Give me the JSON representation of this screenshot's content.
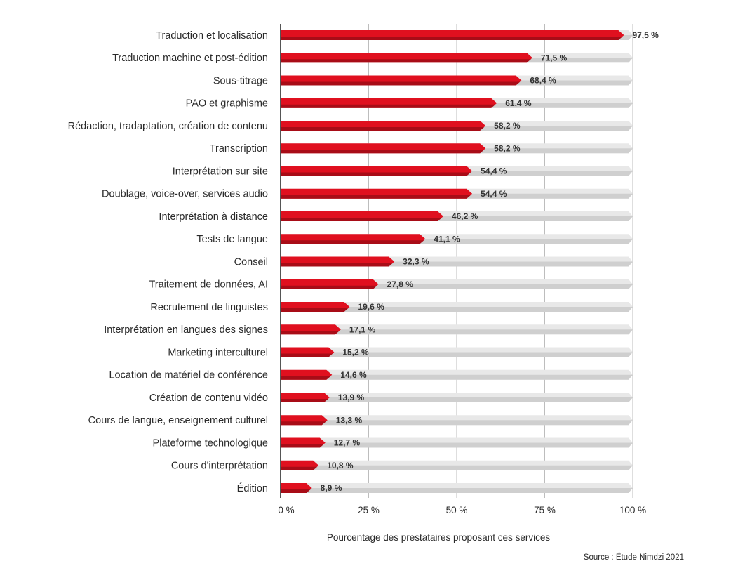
{
  "chart_data": {
    "type": "bar",
    "orientation": "horizontal",
    "categories": [
      "Traduction et localisation",
      "Traduction machine et post-édition",
      "Sous-titrage",
      "PAO et graphisme",
      "Rédaction, tradaptation, création de contenu",
      "Transcription",
      "Interprétation sur site",
      "Doublage, voice-over, services audio",
      "Interprétation à distance",
      "Tests de langue",
      "Conseil",
      "Traitement de données, AI",
      "Recrutement de linguistes",
      "Interprétation en langues des signes",
      "Marketing interculturel",
      "Location de matériel de conférence",
      "Création de contenu vidéo",
      "Cours de langue, enseignement culturel",
      "Plateforme technologique",
      "Cours d'interprétation",
      "Édition"
    ],
    "values": [
      97.5,
      71.5,
      68.4,
      61.4,
      58.2,
      58.2,
      54.4,
      54.4,
      46.2,
      41.1,
      32.3,
      27.8,
      19.6,
      17.1,
      15.2,
      14.6,
      13.9,
      13.3,
      12.7,
      10.8,
      8.9
    ],
    "value_labels": [
      "97,5 %",
      "71,5 %",
      "68,4 %",
      "61,4 %",
      "58,2 %",
      "58,2 %",
      "54,4 %",
      "54,4 %",
      "46,2 %",
      "41,1 %",
      "32,3 %",
      "27,8 %",
      "19,6 %",
      "17,1 %",
      "15,2 %",
      "14,6 %",
      "13,9 %",
      "13,3 %",
      "12,7 %",
      "10,8 %",
      "8,9 %"
    ],
    "xlim": [
      0,
      100
    ],
    "xticks": [
      0,
      25,
      50,
      75,
      100
    ],
    "xtick_labels": [
      "0 %",
      "25 %",
      "50 %",
      "75 %",
      "100 %"
    ],
    "xlabel": "Pourcentage des prestataires proposant ces services",
    "ylabel": "",
    "title": "",
    "grid": true,
    "legend": "none",
    "source": "Source : Étude Nimdzi 2021",
    "colors": {
      "bar": "#e0101f",
      "bar_shade": "#a80c17",
      "track": "#e8e8e8",
      "track_shade": "#cfcfcf",
      "grid": "#bdbdbd",
      "axis": "#555555"
    }
  }
}
